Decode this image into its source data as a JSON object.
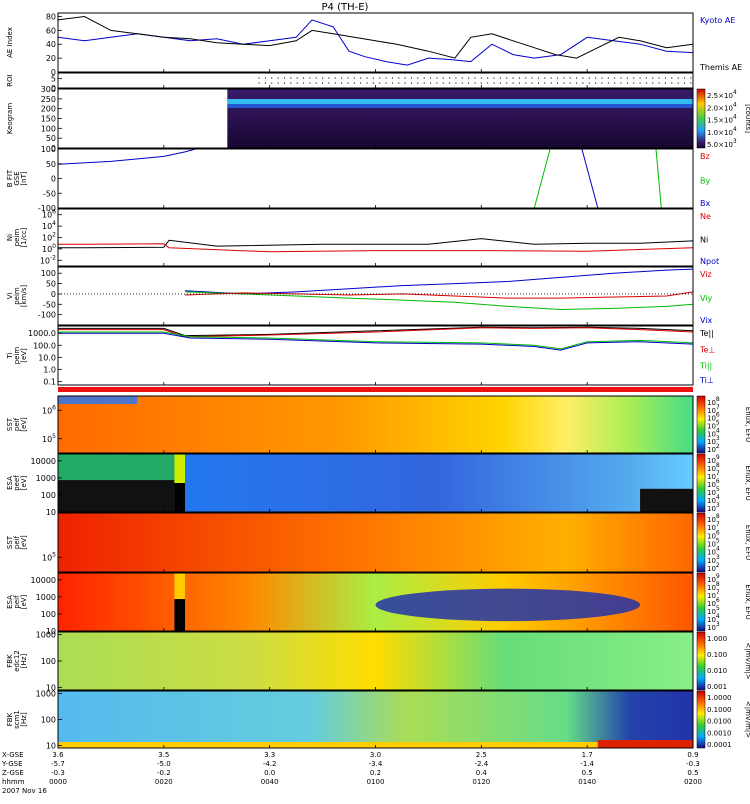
{
  "title": "P4 (TH-E)",
  "footer": {
    "rows": [
      {
        "label": "X-GSE",
        "values": [
          "3.6",
          "3.5",
          "3.3",
          "3.0",
          "2.5",
          "1.7",
          "0.9"
        ]
      },
      {
        "label": "Y-GSE",
        "values": [
          "-5.7",
          "-5.0",
          "-4.2",
          "-3.4",
          "-2.4",
          "-1.4",
          "-0.3"
        ]
      },
      {
        "label": "Z-GSE",
        "values": [
          "-0.3",
          "-0.2",
          "0.0",
          "0.2",
          "0.4",
          "0.5",
          "0.5"
        ]
      },
      {
        "label": "hhmm",
        "values": [
          "0000",
          "0020",
          "0040",
          "0100",
          "0120",
          "0140",
          "0200"
        ]
      }
    ],
    "date": "2007 Nov 16"
  },
  "colors": {
    "blue": "#0000cc",
    "red": "#dd0000",
    "green": "#00bb00",
    "black": "#000000"
  },
  "chart_data": [
    {
      "id": "ae",
      "type": "line",
      "ylabel": "AE Index",
      "yticks": [
        0,
        20,
        40,
        60,
        80
      ],
      "ylim": [
        0,
        85
      ],
      "x_unit": "minutes since 0000",
      "xlim": [
        0,
        120
      ],
      "legend": [
        {
          "text": "Kyoto AE",
          "color": "#0000cc"
        },
        {
          "text": "Themis AE",
          "color": "#000000"
        }
      ],
      "series": [
        {
          "name": "Kyoto AE",
          "color": "#0000cc",
          "x": [
            0,
            5,
            10,
            15,
            20,
            25,
            30,
            35,
            40,
            45,
            48,
            52,
            55,
            58,
            62,
            66,
            70,
            74,
            78,
            82,
            86,
            90,
            95,
            100,
            105,
            110,
            115,
            120
          ],
          "y": [
            50,
            45,
            50,
            55,
            50,
            45,
            48,
            40,
            45,
            50,
            75,
            65,
            30,
            22,
            15,
            10,
            20,
            18,
            15,
            40,
            25,
            20,
            25,
            50,
            45,
            40,
            30,
            28
          ]
        },
        {
          "name": "Themis AE",
          "color": "#000000",
          "x": [
            0,
            5,
            10,
            15,
            20,
            25,
            30,
            35,
            40,
            45,
            48,
            52,
            56,
            60,
            64,
            70,
            75,
            78,
            82,
            86,
            90,
            94,
            98,
            102,
            106,
            110,
            115,
            120
          ],
          "y": [
            75,
            80,
            60,
            55,
            50,
            48,
            42,
            40,
            38,
            45,
            60,
            55,
            50,
            45,
            40,
            30,
            20,
            50,
            55,
            45,
            35,
            25,
            20,
            35,
            50,
            45,
            35,
            40
          ]
        }
      ]
    },
    {
      "id": "roi",
      "type": "other",
      "ylabel": "ROI",
      "yticks": [
        0,
        5
      ],
      "ylim": [
        0,
        8
      ],
      "x_unit": "minutes since 0000",
      "xlim": [
        0,
        120
      ],
      "start": 38,
      "end": 120
    },
    {
      "id": "keogram",
      "type": "heatmap",
      "ylabel": "Keogram",
      "yticks": [
        0,
        50,
        100,
        150,
        200,
        250,
        300
      ],
      "ylim": [
        0,
        300
      ],
      "x_unit": "minutes since 0000",
      "xlim": [
        0,
        120
      ],
      "start": 32,
      "end": 120,
      "colorbar": {
        "labels": [
          "2.5x10^4",
          "2.0x10^4",
          "1.5x10^4",
          "1.0x10^4",
          "5.0x10^3"
        ],
        "unit": "[counts]"
      }
    },
    {
      "id": "bfit",
      "type": "line",
      "ylabel": "B FIT",
      "ylabel2": "GSE",
      "ylabel3": "[nT]",
      "yticks": [
        -100,
        -50,
        0,
        50,
        100
      ],
      "ylim": [
        -100,
        100
      ],
      "x_unit": "minutes since 0000",
      "xlim": [
        0,
        120
      ],
      "legend": [
        {
          "text": "Bz",
          "color": "#dd0000"
        },
        {
          "text": "By",
          "color": "#00bb00"
        },
        {
          "text": "Bx",
          "color": "#0000cc"
        }
      ],
      "series": [
        {
          "name": "Bx",
          "color": "#0000cc",
          "x": [
            0,
            10,
            20,
            24,
            26
          ],
          "y": [
            48,
            58,
            75,
            90,
            100
          ]
        },
        {
          "name": "Bx",
          "color": "#0000cc",
          "x": [
            99,
            102
          ],
          "y": [
            100,
            -100
          ]
        },
        {
          "name": "By",
          "color": "#00bb00",
          "x": [
            90,
            93
          ],
          "y": [
            -100,
            100
          ]
        },
        {
          "name": "By",
          "color": "#00bb00",
          "x": [
            113,
            114
          ],
          "y": [
            100,
            -100
          ]
        }
      ]
    },
    {
      "id": "ni",
      "type": "line",
      "ylabel": "Ni",
      "ylabel2": "peim",
      "ylabel3": "[1/cc]",
      "yticks": [
        "10^-2",
        "10^0",
        "10^2",
        "10^4",
        "10^6"
      ],
      "ylim": [
        -3,
        7
      ],
      "x_unit": "minutes since 0000",
      "xlim": [
        0,
        120
      ],
      "legend": [
        {
          "text": "Ne",
          "color": "#dd0000"
        },
        {
          "text": "Ni",
          "color": "#000000"
        },
        {
          "text": "Npot",
          "color": "#0000cc"
        }
      ],
      "series": [
        {
          "name": "Ni",
          "color": "#000000",
          "x": [
            0,
            5,
            20,
            21,
            30,
            50,
            70,
            80,
            90,
            100,
            110,
            120
          ],
          "y": [
            0.2,
            0.2,
            0.3,
            1.5,
            0.5,
            0.8,
            0.8,
            1.8,
            0.8,
            1.0,
            1.0,
            1.4
          ]
        },
        {
          "name": "Ne",
          "color": "#dd0000",
          "x": [
            0,
            5,
            20,
            21,
            40,
            60,
            80,
            100,
            120
          ],
          "y": [
            0.8,
            0.8,
            0.9,
            0.2,
            -0.5,
            -0.3,
            -0.3,
            -0.4,
            0.2
          ]
        }
      ]
    },
    {
      "id": "vi",
      "type": "line",
      "ylabel": "Vi",
      "ylabel2": "peim",
      "ylabel3": "[km/s]",
      "yticks": [
        -100,
        -50,
        0,
        50,
        100
      ],
      "ylim": [
        -150,
        130
      ],
      "x_unit": "minutes since 0000",
      "xlim": [
        0,
        120
      ],
      "legend": [
        {
          "text": "Viz",
          "color": "#dd0000"
        },
        {
          "text": "Viy",
          "color": "#00bb00"
        },
        {
          "text": "Vix",
          "color": "#0000cc"
        }
      ],
      "series": [
        {
          "name": "Vix",
          "color": "#0000cc",
          "x": [
            24,
            35,
            45,
            55,
            65,
            75,
            85,
            95,
            105,
            115,
            120
          ],
          "y": [
            15,
            0,
            10,
            25,
            40,
            50,
            60,
            80,
            100,
            115,
            120
          ]
        },
        {
          "name": "Viy",
          "color": "#00bb00",
          "x": [
            24,
            35,
            45,
            55,
            65,
            75,
            85,
            95,
            105,
            115,
            120
          ],
          "y": [
            10,
            0,
            -10,
            -20,
            -30,
            -40,
            -60,
            -75,
            -70,
            -60,
            -50
          ]
        },
        {
          "name": "Viz",
          "color": "#dd0000",
          "x": [
            24,
            35,
            45,
            55,
            65,
            75,
            85,
            95,
            105,
            115,
            120
          ],
          "y": [
            -5,
            5,
            0,
            -5,
            0,
            -10,
            -20,
            -20,
            -15,
            -10,
            10
          ]
        }
      ]
    },
    {
      "id": "ti",
      "type": "line",
      "ylabel": "Ti",
      "ylabel2": "peim",
      "ylabel3": "[eV]",
      "yticks": [
        "0.1",
        "1.0",
        "10.0",
        "100.0",
        "1000.0"
      ],
      "ylim": [
        -1.3,
        3.6
      ],
      "x_unit": "minutes since 0000",
      "xlim": [
        0,
        120
      ],
      "legend": [
        {
          "text": "Te||",
          "color": "#000000"
        },
        {
          "text": "Te⊥",
          "color": "#dd0000"
        },
        {
          "text": "Ti||",
          "color": "#00bb00"
        },
        {
          "text": "Ti⊥",
          "color": "#0000cc"
        }
      ],
      "series": [
        {
          "name": "Te||",
          "color": "#000000",
          "x": [
            0,
            20,
            24,
            40,
            60,
            80,
            90,
            100,
            110,
            120
          ],
          "y": [
            3.4,
            3.4,
            2.8,
            2.9,
            3.2,
            3.5,
            3.45,
            3.5,
            3.4,
            3.2
          ]
        },
        {
          "name": "Te⊥",
          "color": "#dd0000",
          "x": [
            0,
            20,
            24,
            40,
            60,
            80,
            90,
            100,
            110,
            120
          ],
          "y": [
            3.3,
            3.3,
            2.7,
            2.85,
            3.1,
            3.45,
            3.4,
            3.45,
            3.3,
            3.1
          ]
        },
        {
          "name": "Ti||",
          "color": "#00bb00",
          "x": [
            0,
            20,
            25,
            40,
            60,
            80,
            90,
            95,
            100,
            110,
            120
          ],
          "y": [
            3.1,
            3.1,
            2.7,
            2.6,
            2.3,
            2.2,
            2.0,
            1.7,
            2.3,
            2.4,
            2.2
          ]
        },
        {
          "name": "Ti⊥",
          "color": "#0000cc",
          "x": [
            0,
            20,
            25,
            40,
            60,
            80,
            90,
            95,
            100,
            110,
            120
          ],
          "y": [
            3.0,
            3.0,
            2.6,
            2.5,
            2.2,
            2.1,
            1.9,
            1.6,
            2.2,
            2.3,
            2.1
          ]
        }
      ]
    },
    {
      "id": "sst_i",
      "type": "heatmap",
      "ylabel": "SST",
      "ylabel2": "peif",
      "ylabel3": "[eV]",
      "yticks": [
        "10^5",
        "10^6"
      ],
      "ylim": [
        4.5,
        6.5
      ],
      "x_unit": "minutes since 0000",
      "xlim": [
        0,
        120
      ],
      "colorbar": {
        "labels": [
          "10^8",
          "10^7",
          "10^6",
          "10^5",
          "10^4",
          "10^3",
          "10^2"
        ],
        "unit": "Eflux, EFU"
      }
    },
    {
      "id": "esa_e",
      "type": "heatmap",
      "ylabel": "ESA",
      "ylabel2": "peef",
      "ylabel3": "[eV]",
      "yticks": [
        "10",
        "100",
        "1000",
        "10000"
      ],
      "ylim": [
        1,
        4.4
      ],
      "x_unit": "minutes since 0000",
      "xlim": [
        0,
        120
      ],
      "colorbar": {
        "labels": [
          "10^9",
          "10^8",
          "10^7",
          "10^6",
          "10^5",
          "10^4",
          "10^3"
        ],
        "unit": "Eflux, EFU"
      }
    },
    {
      "id": "sst_e",
      "type": "heatmap",
      "ylabel": "SST",
      "ylabel2": "peif",
      "ylabel3": "[eV]",
      "yticks": [
        "10^5"
      ],
      "ylim": [
        4.5,
        6.5
      ],
      "x_unit": "minutes since 0000",
      "xlim": [
        0,
        120
      ],
      "colorbar": {
        "labels": [
          "10^8",
          "10^7",
          "10^6",
          "10^5",
          "10^4",
          "10^3",
          "10^2"
        ],
        "unit": "Eflux, EFU"
      }
    },
    {
      "id": "esa_i",
      "type": "heatmap",
      "ylabel": "ESA",
      "ylabel2": "peif",
      "ylabel3": "[eV]",
      "yticks": [
        "10",
        "100",
        "1000",
        "10000"
      ],
      "ylim": [
        1,
        4.4
      ],
      "x_unit": "minutes since 0000",
      "xlim": [
        0,
        120
      ],
      "colorbar": {
        "labels": [
          "10^9",
          "10^8",
          "10^7",
          "10^6",
          "10^5",
          "10^4",
          "10^3"
        ],
        "unit": "Eflux, EFU"
      }
    },
    {
      "id": "fbk_e",
      "type": "heatmap",
      "ylabel": "FBK",
      "ylabel2": "edc12",
      "ylabel3": "[Hz]",
      "yticks": [
        "10",
        "100",
        "1000"
      ],
      "ylim": [
        0.9,
        3.1
      ],
      "x_unit": "minutes since 0000",
      "xlim": [
        0,
        120
      ],
      "colorbar": {
        "labels": [
          "1.000",
          "0.100",
          "0.010",
          "0.001"
        ],
        "unit": "<|mV/m|>"
      }
    },
    {
      "id": "fbk_b",
      "type": "heatmap",
      "ylabel": "FBK",
      "ylabel2": "scm1",
      "ylabel3": "[Hz]",
      "yticks": [
        "10",
        "100",
        "1000"
      ],
      "ylim": [
        0.9,
        3.1
      ],
      "x_unit": "minutes since 0000",
      "xlim": [
        0,
        120
      ],
      "colorbar": {
        "labels": [
          "1.0000",
          "0.1000",
          "0.0100",
          "0.0010",
          "0.0001"
        ],
        "unit": "<|mV/m|>"
      }
    }
  ]
}
